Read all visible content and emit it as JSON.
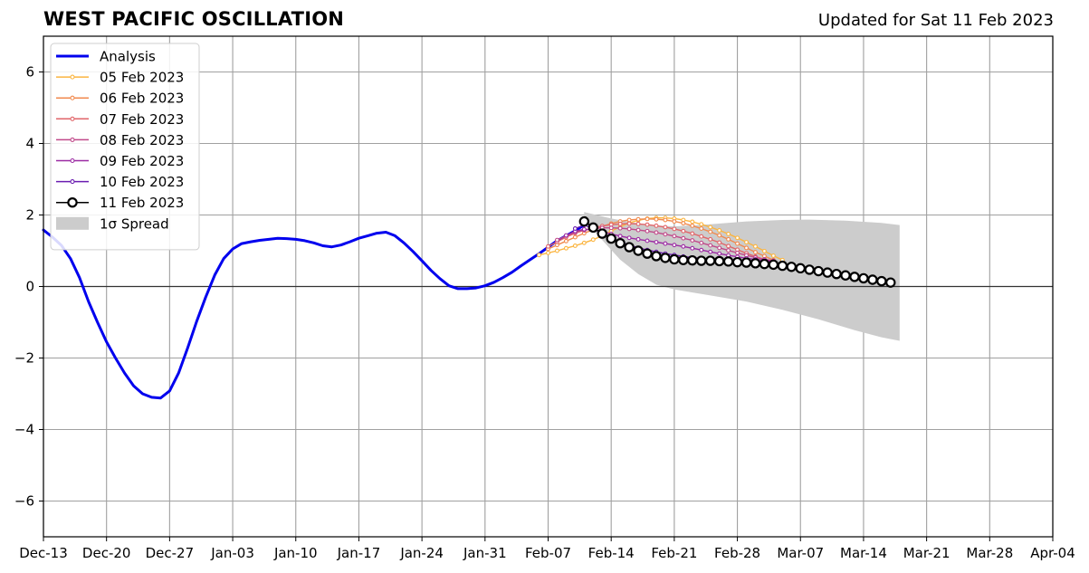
{
  "chart_data": {
    "type": "line",
    "title": "WEST PACIFIC OSCILLATION",
    "subtitle": "Updated for Sat 11 Feb 2023",
    "xlabel": "",
    "ylabel": "",
    "x_axis": {
      "type": "date",
      "range": [
        "2022-12-13",
        "2023-04-04"
      ],
      "ticks": [
        "2022-12-13",
        "2022-12-20",
        "2022-12-27",
        "2023-01-03",
        "2023-01-10",
        "2023-01-17",
        "2023-01-24",
        "2023-01-31",
        "2023-02-07",
        "2023-02-14",
        "2023-02-21",
        "2023-02-28",
        "2023-03-07",
        "2023-03-14",
        "2023-03-21",
        "2023-03-28",
        "2023-04-04"
      ],
      "tick_labels": [
        "Dec-13",
        "Dec-20",
        "Dec-27",
        "Jan-03",
        "Jan-10",
        "Jan-17",
        "Jan-24",
        "Jan-31",
        "Feb-07",
        "Feb-14",
        "Feb-21",
        "Feb-28",
        "Mar-07",
        "Mar-14",
        "Mar-21",
        "Mar-28",
        "Apr-04"
      ]
    },
    "y_axis": {
      "range": [
        -7,
        7
      ],
      "ticks": [
        -6,
        -4,
        -2,
        0,
        2,
        4,
        6
      ],
      "tick_labels": [
        "−6",
        "−4",
        "−2",
        "0",
        "2",
        "4",
        "6"
      ]
    },
    "grid": true,
    "legend_position": "top-left",
    "series": [
      {
        "name": "Analysis",
        "color": "#0000ee",
        "marker": "none",
        "points": [
          [
            "2022-12-13",
            1.58
          ],
          [
            "2022-12-14",
            1.38
          ],
          [
            "2022-12-15",
            1.15
          ],
          [
            "2022-12-16",
            0.78
          ],
          [
            "2022-12-17",
            0.25
          ],
          [
            "2022-12-18",
            -0.42
          ],
          [
            "2022-12-19",
            -1.0
          ],
          [
            "2022-12-20",
            -1.55
          ],
          [
            "2022-12-21",
            -2.0
          ],
          [
            "2022-12-22",
            -2.42
          ],
          [
            "2022-12-23",
            -2.78
          ],
          [
            "2022-12-24",
            -3.0
          ],
          [
            "2022-12-25",
            -3.1
          ],
          [
            "2022-12-26",
            -3.12
          ],
          [
            "2022-12-27",
            -2.92
          ],
          [
            "2022-12-28",
            -2.42
          ],
          [
            "2022-12-29",
            -1.72
          ],
          [
            "2022-12-30",
            -0.98
          ],
          [
            "2022-12-31",
            -0.3
          ],
          [
            "2023-01-01",
            0.32
          ],
          [
            "2023-01-02",
            0.78
          ],
          [
            "2023-01-03",
            1.05
          ],
          [
            "2023-01-04",
            1.2
          ],
          [
            "2023-01-05",
            1.25
          ],
          [
            "2023-01-06",
            1.29
          ],
          [
            "2023-01-07",
            1.32
          ],
          [
            "2023-01-08",
            1.35
          ],
          [
            "2023-01-09",
            1.34
          ],
          [
            "2023-01-10",
            1.32
          ],
          [
            "2023-01-11",
            1.28
          ],
          [
            "2023-01-12",
            1.22
          ],
          [
            "2023-01-13",
            1.14
          ],
          [
            "2023-01-14",
            1.11
          ],
          [
            "2023-01-15",
            1.16
          ],
          [
            "2023-01-16",
            1.25
          ],
          [
            "2023-01-17",
            1.35
          ],
          [
            "2023-01-18",
            1.42
          ],
          [
            "2023-01-19",
            1.49
          ],
          [
            "2023-01-20",
            1.52
          ],
          [
            "2023-01-21",
            1.42
          ],
          [
            "2023-01-22",
            1.22
          ],
          [
            "2023-01-23",
            0.98
          ],
          [
            "2023-01-24",
            0.72
          ],
          [
            "2023-01-25",
            0.45
          ],
          [
            "2023-01-26",
            0.22
          ],
          [
            "2023-01-27",
            0.02
          ],
          [
            "2023-01-28",
            -0.06
          ],
          [
            "2023-01-29",
            -0.06
          ],
          [
            "2023-01-30",
            -0.04
          ],
          [
            "2023-01-31",
            0.02
          ],
          [
            "2023-02-01",
            0.12
          ],
          [
            "2023-02-02",
            0.25
          ],
          [
            "2023-02-03",
            0.4
          ],
          [
            "2023-02-04",
            0.58
          ],
          [
            "2023-02-05",
            0.75
          ],
          [
            "2023-02-06",
            0.92
          ],
          [
            "2023-02-07",
            1.1
          ],
          [
            "2023-02-08",
            1.28
          ],
          [
            "2023-02-09",
            1.42
          ],
          [
            "2023-02-10",
            1.56
          ],
          [
            "2023-02-11",
            1.72
          ]
        ]
      },
      {
        "name": "05 Feb 2023",
        "color": "#fbb540",
        "marker": "dot",
        "start": "2023-02-06",
        "values": [
          0.88,
          0.94,
          1.0,
          1.07,
          1.14,
          1.22,
          1.31,
          1.42,
          1.55,
          1.67,
          1.78,
          1.85,
          1.9,
          1.92,
          1.92,
          1.9,
          1.86,
          1.81,
          1.74,
          1.66,
          1.57,
          1.47,
          1.36,
          1.24,
          1.12,
          0.99,
          0.86,
          0.74
        ]
      },
      {
        "name": "06 Feb 2023",
        "color": "#f18a4e",
        "marker": "dot",
        "start": "2023-02-07",
        "values": [
          1.05,
          1.16,
          1.27,
          1.38,
          1.49,
          1.59,
          1.68,
          1.76,
          1.82,
          1.86,
          1.88,
          1.89,
          1.88,
          1.86,
          1.82,
          1.77,
          1.7,
          1.62,
          1.53,
          1.43,
          1.32,
          1.2,
          1.08,
          0.96,
          0.85,
          0.74
        ]
      },
      {
        "name": "07 Feb 2023",
        "color": "#e16569",
        "marker": "dot",
        "start": "2023-02-07",
        "values": [
          1.12,
          1.25,
          1.38,
          1.49,
          1.57,
          1.64,
          1.69,
          1.73,
          1.75,
          1.76,
          1.75,
          1.73,
          1.7,
          1.66,
          1.61,
          1.55,
          1.48,
          1.4,
          1.32,
          1.23,
          1.13,
          1.03,
          0.93,
          0.84,
          0.76,
          0.69
        ]
      },
      {
        "name": "08 Feb 2023",
        "color": "#c1498a",
        "marker": "dot",
        "start": "2023-02-08",
        "values": [
          1.3,
          1.42,
          1.52,
          1.58,
          1.62,
          1.64,
          1.64,
          1.63,
          1.61,
          1.58,
          1.55,
          1.51,
          1.46,
          1.41,
          1.35,
          1.29,
          1.22,
          1.15,
          1.08,
          1.01,
          0.94,
          0.87,
          0.81,
          0.76,
          0.72
        ]
      },
      {
        "name": "09 Feb 2023",
        "color": "#9b2aa3",
        "marker": "dot",
        "start": "2023-02-09",
        "values": [
          1.43,
          1.55,
          1.6,
          1.58,
          1.53,
          1.47,
          1.41,
          1.36,
          1.32,
          1.28,
          1.24,
          1.2,
          1.16,
          1.12,
          1.07,
          1.02,
          0.97,
          0.92,
          0.87,
          0.83,
          0.79,
          0.76,
          0.73,
          0.7
        ]
      },
      {
        "name": "10 Feb 2023",
        "color": "#6a1cb0",
        "marker": "dot",
        "start": "2023-02-10",
        "values": [
          1.62,
          1.72,
          1.62,
          1.48,
          1.36,
          1.25,
          1.16,
          1.08,
          1.02,
          0.97,
          0.92,
          0.88,
          0.84,
          0.81,
          0.78,
          0.75,
          0.72,
          0.7,
          0.68,
          0.66,
          0.64,
          0.62
        ]
      },
      {
        "name": "11 Feb 2023",
        "color": "#000000",
        "marker": "circle",
        "start": "2023-02-11",
        "values": [
          1.82,
          1.65,
          1.48,
          1.34,
          1.21,
          1.1,
          1.0,
          0.92,
          0.85,
          0.8,
          0.76,
          0.74,
          0.73,
          0.72,
          0.72,
          0.71,
          0.7,
          0.68,
          0.67,
          0.65,
          0.63,
          0.61,
          0.58,
          0.55,
          0.51,
          0.47,
          0.43,
          0.39,
          0.35,
          0.31,
          0.27,
          0.23,
          0.19,
          0.15,
          0.11
        ]
      }
    ],
    "spread": {
      "name": "1σ Spread",
      "color": "#cccccc",
      "upper": [
        [
          "2023-02-11",
          2.08
        ],
        [
          "2023-02-14",
          1.9
        ],
        [
          "2023-02-18",
          1.72
        ],
        [
          "2023-02-21",
          1.68
        ],
        [
          "2023-02-25",
          1.74
        ],
        [
          "2023-03-01",
          1.82
        ],
        [
          "2023-03-05",
          1.86
        ],
        [
          "2023-03-08",
          1.87
        ],
        [
          "2023-03-12",
          1.84
        ],
        [
          "2023-03-16",
          1.78
        ],
        [
          "2023-03-18",
          1.72
        ],
        [
          "2023-03-18",
          1.7
        ]
      ],
      "lower": [
        [
          "2023-02-11",
          1.86
        ],
        [
          "2023-02-13",
          1.3
        ],
        [
          "2023-02-15",
          0.75
        ],
        [
          "2023-02-17",
          0.35
        ],
        [
          "2023-02-19",
          0.05
        ],
        [
          "2023-02-21",
          -0.08
        ],
        [
          "2023-02-25",
          -0.25
        ],
        [
          "2023-03-01",
          -0.42
        ],
        [
          "2023-03-05",
          -0.65
        ],
        [
          "2023-03-09",
          -0.92
        ],
        [
          "2023-03-13",
          -1.22
        ],
        [
          "2023-03-16",
          -1.42
        ],
        [
          "2023-03-18",
          -1.52
        ]
      ]
    }
  }
}
